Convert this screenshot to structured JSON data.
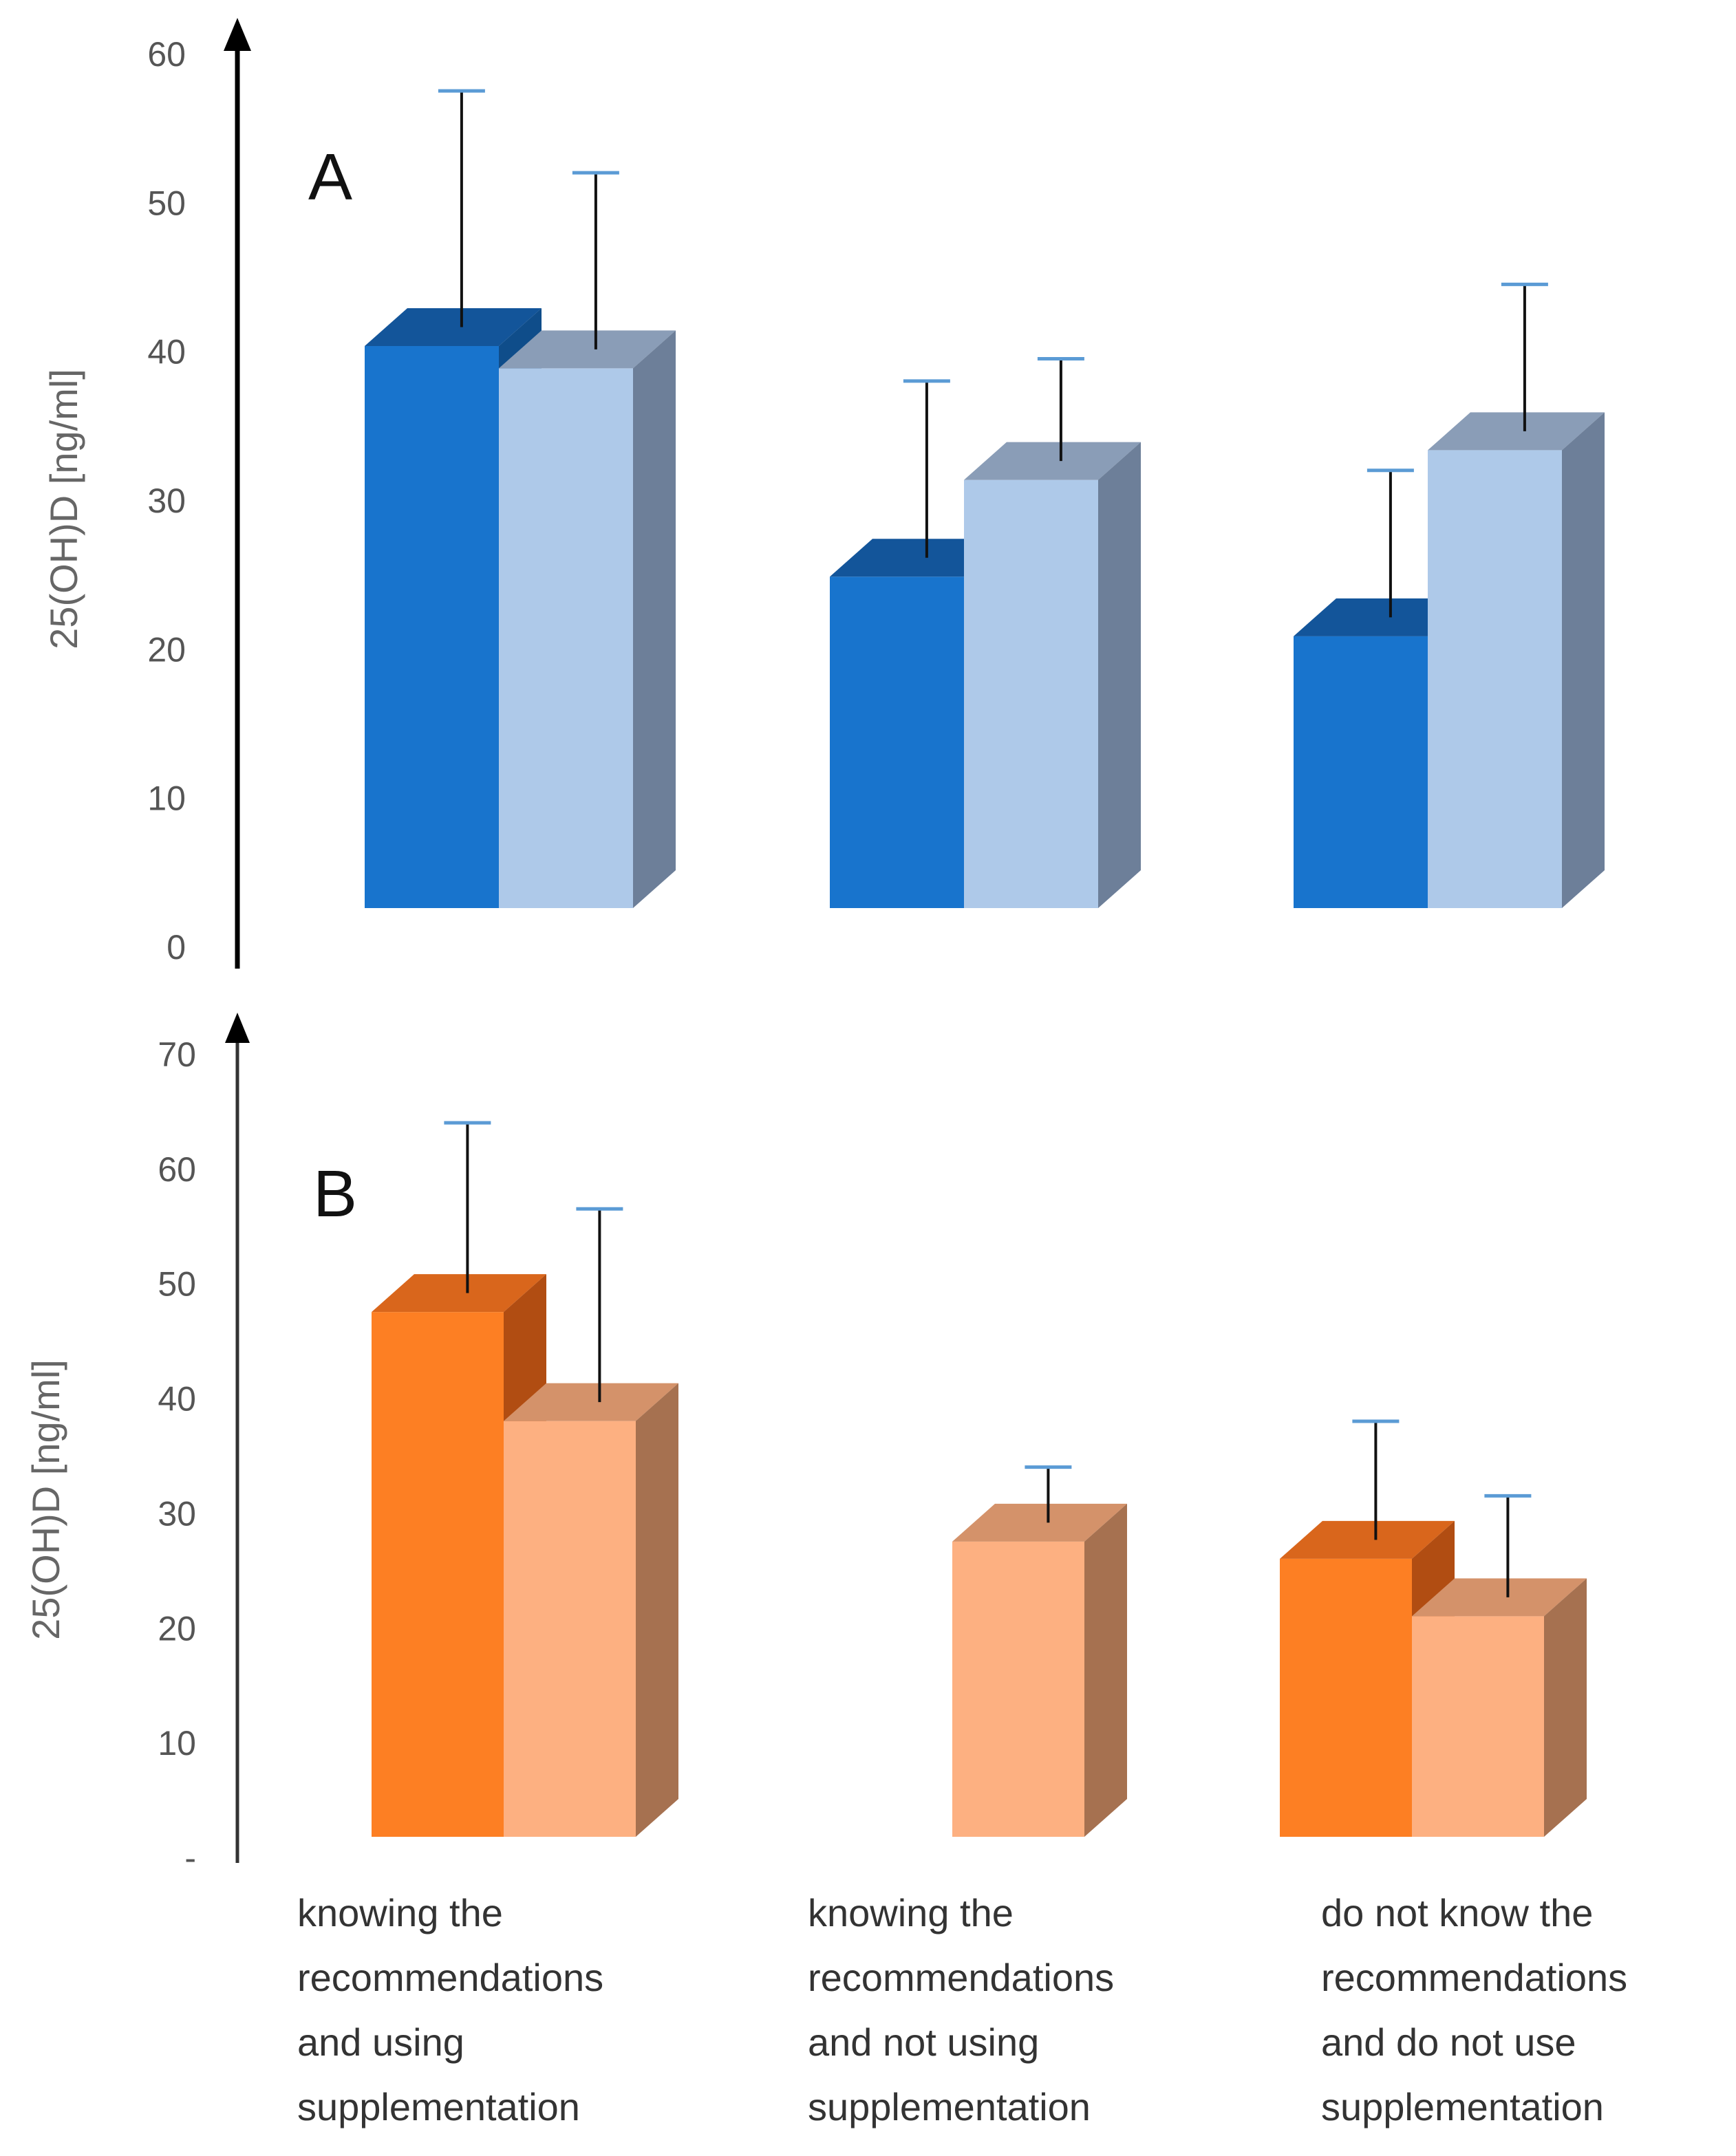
{
  "chart_data": [
    {
      "type": "bar",
      "panel": "A",
      "ylabel": "25(OH)D [ng/ml]",
      "ylim": [
        0,
        60
      ],
      "yticks": [
        "0",
        "10",
        "20",
        "30",
        "40",
        "50",
        "60"
      ],
      "categories": [
        "knowing the recommendations and using supplementation",
        "knowing the recommendations and not using supplementation",
        "do not know the recommendations and do not use supplementation"
      ],
      "series": [
        {
          "values": [
            41.5,
            26,
            22
          ],
          "errors": [
            16,
            12,
            10
          ],
          "color": "#1874cd",
          "top_color": "#13559a",
          "side_color": "#0f4d8a"
        },
        {
          "values": [
            40,
            32.5,
            34.5
          ],
          "errors": [
            12,
            7,
            10
          ],
          "color": "#aec9e9",
          "top_color": "#8a9db7",
          "side_color": "#6d7f99"
        }
      ],
      "error_cap_color": "#5b9bd5",
      "grid": false
    },
    {
      "type": "bar",
      "panel": "B",
      "ylabel": "25(OH)D [ng/ml]",
      "ylim": [
        0,
        70
      ],
      "yticks": [
        "-",
        "10",
        "20",
        "30",
        "40",
        "50",
        "60",
        "70"
      ],
      "categories": [
        "knowing the recommendations and using supplementation",
        "knowing the recommendations and not using supplementation",
        "do not know the recommendations and do not use supplementation"
      ],
      "series": [
        {
          "values": [
            49,
            null,
            27.5
          ],
          "errors": [
            15,
            null,
            10.5
          ],
          "color": "#fd7f23",
          "top_color": "#d9661c",
          "side_color": "#b14d12"
        },
        {
          "values": [
            39.5,
            29,
            22.5
          ],
          "errors": [
            17,
            5,
            9
          ],
          "color": "#fdb081",
          "top_color": "#d4926a",
          "side_color": "#a67150"
        }
      ],
      "error_cap_color": "#5b9bd5",
      "grid": false
    }
  ],
  "x_labels": [
    [
      "knowing the",
      "recommendations",
      "and using",
      "supplementation"
    ],
    [
      "knowing the",
      "recommendations",
      "and not using",
      "supplementation"
    ],
    [
      "do not know the",
      "recommendations",
      "and do not use",
      "supplementation"
    ]
  ]
}
